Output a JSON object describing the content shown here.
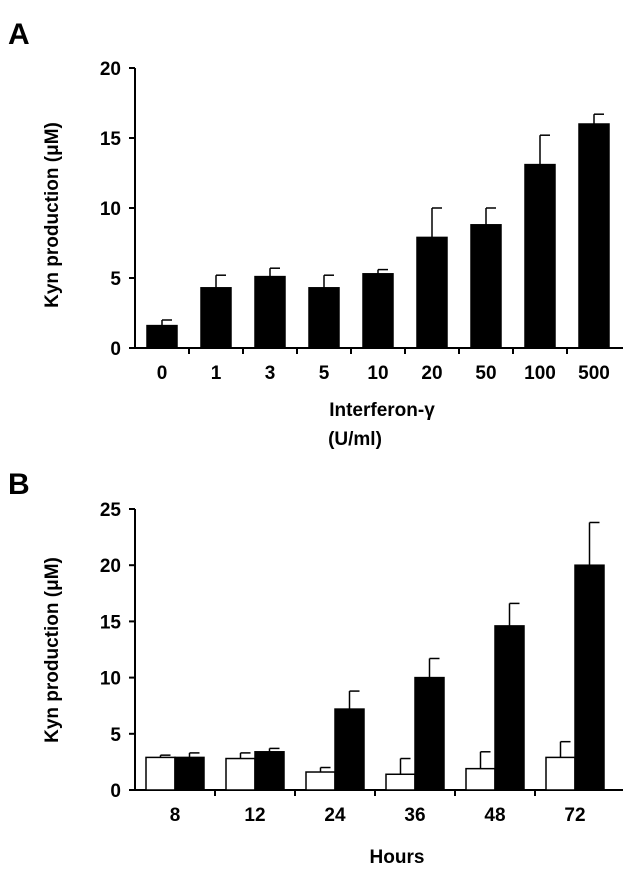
{
  "chart_data": [
    {
      "panel_label": "A",
      "type": "bar",
      "ylabel": "Kyn production (μM)",
      "xlabel_line1": "Interferon-γ",
      "xlabel_line2": "(U/ml)",
      "categories": [
        "0",
        "1",
        "3",
        "5",
        "10",
        "20",
        "50",
        "100",
        "500"
      ],
      "ylim": [
        0,
        20
      ],
      "yticks": [
        0,
        5,
        10,
        15,
        20
      ],
      "series": [
        {
          "color": "#000000",
          "values": [
            1.6,
            4.3,
            5.1,
            4.3,
            5.3,
            7.9,
            8.8,
            13.1,
            16.0
          ],
          "errors": [
            0.4,
            0.9,
            0.6,
            0.9,
            0.3,
            2.1,
            1.2,
            2.1,
            0.7
          ]
        }
      ],
      "grid": false
    },
    {
      "panel_label": "B",
      "type": "bar",
      "ylabel": "Kyn production (μM)",
      "xlabel": "Hours",
      "categories": [
        "8",
        "12",
        "24",
        "36",
        "48",
        "72"
      ],
      "ylim": [
        0,
        25
      ],
      "yticks": [
        0,
        5,
        10,
        15,
        20,
        25
      ],
      "series": [
        {
          "color": "#ffffff",
          "values": [
            2.9,
            2.8,
            1.6,
            1.4,
            1.9,
            2.9
          ],
          "errors": [
            0.2,
            0.5,
            0.4,
            1.4,
            1.5,
            1.4
          ]
        },
        {
          "color": "#000000",
          "values": [
            2.9,
            3.4,
            7.2,
            10.0,
            14.6,
            20.0
          ],
          "errors": [
            0.4,
            0.3,
            1.6,
            1.7,
            2.0,
            3.8
          ]
        }
      ],
      "grid": false
    }
  ]
}
